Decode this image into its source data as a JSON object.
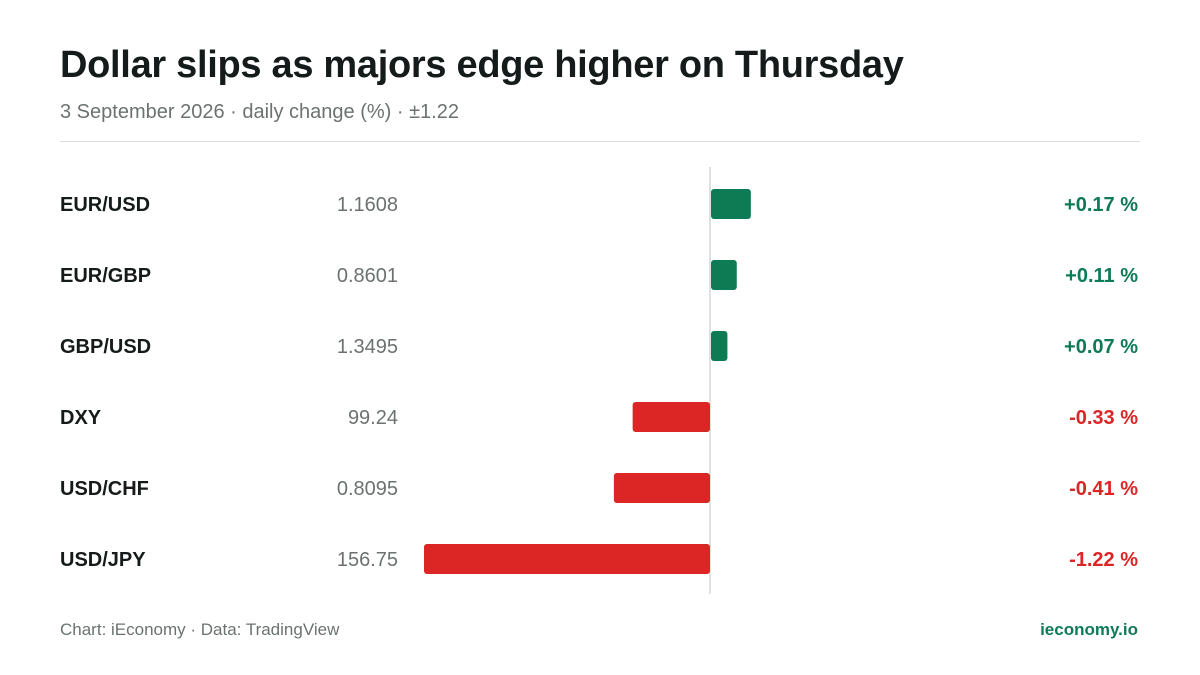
{
  "header": {
    "title": "Dollar slips as majors edge higher on Thursday",
    "subtitle": "3 September 2026 · daily change (%) · ±1.22"
  },
  "footer": {
    "source": "Chart: iEconomy · Data: TradingView",
    "brand": "ieconomy.io"
  },
  "colors": {
    "positive": "#0f7b55",
    "negative": "#dc2626",
    "axis": "#d4d7d6",
    "label": "#151b1a",
    "muted": "#6b7270"
  },
  "chart_data": {
    "type": "bar",
    "orientation": "horizontal",
    "categories": [
      "EUR/USD",
      "EUR/GBP",
      "GBP/USD",
      "DXY",
      "USD/CHF",
      "USD/JPY"
    ],
    "prices": [
      "1.1608",
      "0.8601",
      "1.3495",
      "99.24",
      "0.8095",
      "156.75"
    ],
    "values": [
      0.17,
      0.11,
      0.07,
      -0.33,
      -0.41,
      -1.22
    ],
    "value_labels": [
      "+0.17 %",
      "+0.11 %",
      "+0.07 %",
      "-0.33 %",
      "-0.41 %",
      "-1.22 %"
    ],
    "xlim": [
      -1.22,
      1.22
    ],
    "grid": false,
    "title": "Dollar slips as majors edge higher on Thursday",
    "xlabel": "",
    "ylabel": ""
  }
}
